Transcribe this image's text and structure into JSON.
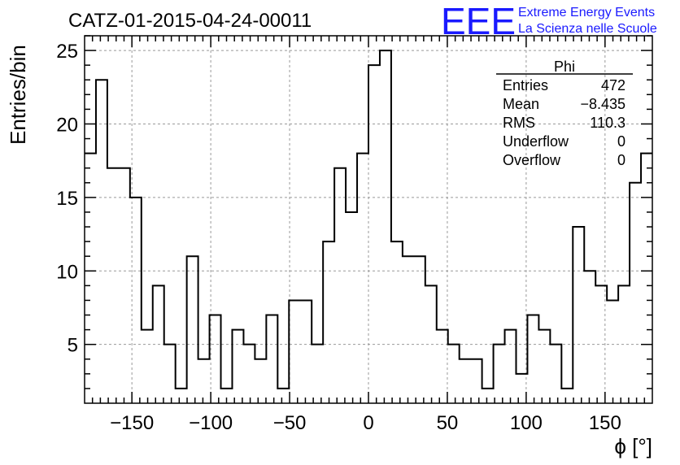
{
  "header": {
    "run_title": "CATZ-01-2015-04-24-00011",
    "logo_text": "EEE",
    "logo_line1": "Extreme Energy Events",
    "logo_line2": "La Scienza nelle Scuole",
    "logo_color": "#1a1aff"
  },
  "stats_box": {
    "title": "Phi",
    "rows": [
      {
        "label": "Entries",
        "value": "472"
      },
      {
        "label": "Mean",
        "value": "−8.435"
      },
      {
        "label": "RMS",
        "value": "110.3"
      },
      {
        "label": "Underflow",
        "value": "0"
      },
      {
        "label": "Overflow",
        "value": "0"
      }
    ]
  },
  "chart_data": {
    "type": "histogram",
    "xlabel": "ϕ [°]",
    "ylabel": "Entries/bin",
    "xlim": [
      -180,
      180
    ],
    "ylim": [
      1,
      26
    ],
    "bin_width": 7.2,
    "bin_low_edge": -180,
    "grid": true,
    "line_color": "#000000",
    "xticks": [
      -150,
      -100,
      -50,
      0,
      50,
      100,
      150
    ],
    "xtick_labels": [
      "−150",
      "−100",
      "−50",
      "0",
      "50",
      "100",
      "150"
    ],
    "yticks": [
      5,
      10,
      15,
      20,
      25
    ],
    "ytick_labels": [
      "5",
      "10",
      "15",
      "20",
      "25"
    ],
    "values": [
      18,
      23,
      17,
      17,
      15,
      6,
      9,
      5,
      2,
      11,
      4,
      7,
      2,
      6,
      5,
      4,
      7,
      2,
      8,
      8,
      5,
      12,
      17,
      14,
      18,
      24,
      25,
      12,
      11,
      11,
      9,
      6,
      5,
      4,
      4,
      2,
      5,
      6,
      3,
      7,
      6,
      5,
      2,
      13,
      10,
      9,
      8,
      9,
      16,
      18
    ]
  }
}
